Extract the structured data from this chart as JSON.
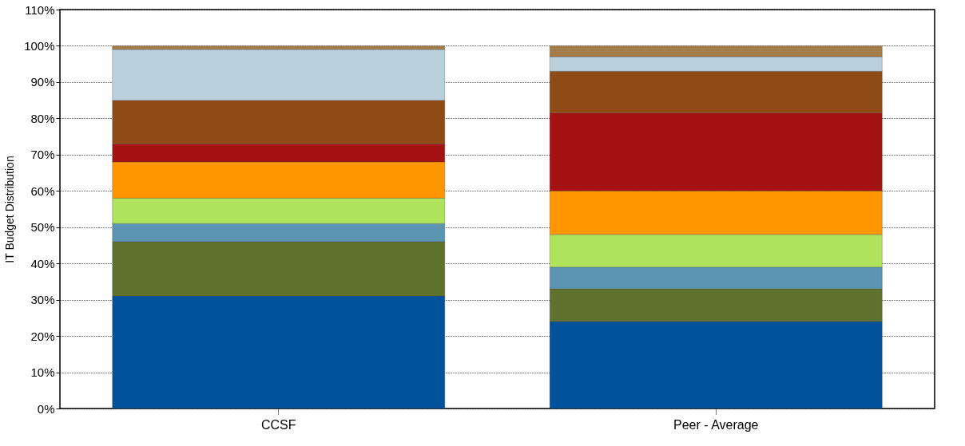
{
  "chart_data": {
    "type": "bar",
    "stacked": true,
    "ylabel": "IT Budget Distribution",
    "categories": [
      "CCSF",
      "Peer - Average"
    ],
    "series": [
      {
        "color": "#00529b",
        "values": [
          31,
          24
        ]
      },
      {
        "color": "#5f722e",
        "values": [
          15,
          9
        ]
      },
      {
        "color": "#5b95b1",
        "values": [
          5,
          6
        ]
      },
      {
        "color": "#b0e35c",
        "values": [
          7,
          9
        ]
      },
      {
        "color": "#ff9500",
        "values": [
          10,
          12
        ]
      },
      {
        "color": "#a51213",
        "values": [
          5,
          21.5
        ]
      },
      {
        "color": "#8f4b15",
        "values": [
          12,
          11.5
        ]
      },
      {
        "color": "#b9cfdc",
        "values": [
          14,
          4
        ]
      },
      {
        "color": "#a57d4a",
        "values": [
          1,
          3
        ]
      }
    ],
    "ylim": [
      0,
      110
    ],
    "yticks": [
      {
        "value": 0,
        "label": "0%"
      },
      {
        "value": 10,
        "label": "10%"
      },
      {
        "value": 20,
        "label": "20%"
      },
      {
        "value": 30,
        "label": "30%"
      },
      {
        "value": 40,
        "label": "40%"
      },
      {
        "value": 50,
        "label": "50%"
      },
      {
        "value": 60,
        "label": "60%"
      },
      {
        "value": 70,
        "label": "70%"
      },
      {
        "value": 80,
        "label": "80%"
      },
      {
        "value": 90,
        "label": "90%"
      },
      {
        "value": 100,
        "label": "100%"
      },
      {
        "value": 110,
        "label": "110%"
      }
    ],
    "grid": "y",
    "legend": false
  }
}
